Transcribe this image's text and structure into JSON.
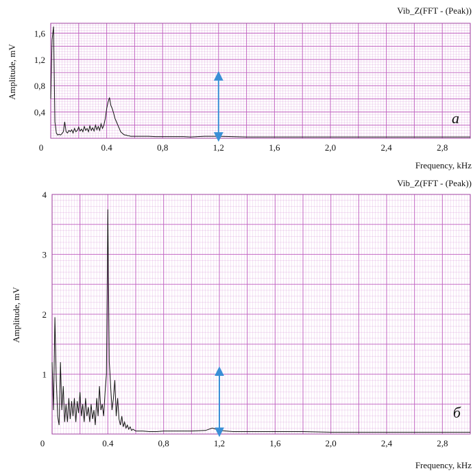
{
  "chart_data": [
    {
      "type": "line",
      "panel_label": "a",
      "title": "Vib_Z(FFT - (Peak))",
      "xlabel": "Frequency, kHz",
      "ylabel": "Amplitude, mV",
      "xlim": [
        0,
        3.0
      ],
      "ylim": [
        0,
        1.75
      ],
      "x_ticks": [
        "0",
        "0.4",
        "0,8",
        "1,2",
        "1,6",
        "2,0",
        "2,4",
        "2,8"
      ],
      "x_tick_values": [
        0,
        0.4,
        0.8,
        1.2,
        1.6,
        2.0,
        2.4,
        2.8
      ],
      "y_ticks": [
        "0,4",
        "0,8",
        "1,2",
        "1,6"
      ],
      "y_tick_values": [
        0.4,
        0.8,
        1.2,
        1.6
      ],
      "grid": true,
      "grid_color": "#c060c0",
      "line_color": "#111111",
      "arrow": {
        "x": 1.2,
        "y_from": 0.02,
        "y_to": 0.95,
        "color": "#3a8fd6"
      },
      "series": [
        {
          "x": [
            0.0,
            0.01,
            0.02,
            0.03,
            0.04,
            0.05,
            0.06,
            0.07,
            0.08,
            0.09,
            0.1,
            0.11,
            0.12,
            0.13,
            0.14,
            0.15,
            0.16,
            0.17,
            0.18,
            0.19,
            0.2,
            0.21,
            0.22,
            0.23,
            0.24,
            0.25,
            0.26,
            0.27,
            0.28,
            0.29,
            0.3,
            0.31,
            0.32,
            0.33,
            0.34,
            0.35,
            0.36,
            0.37,
            0.38,
            0.39,
            0.4,
            0.41,
            0.42,
            0.43,
            0.44,
            0.45,
            0.46,
            0.47,
            0.48,
            0.49,
            0.5,
            0.51,
            0.52,
            0.53,
            0.54,
            0.55,
            0.56,
            0.57,
            0.58,
            0.6,
            0.65,
            0.7,
            0.75,
            0.8,
            0.85,
            0.9,
            0.95,
            1.0,
            1.1,
            1.2,
            1.3,
            1.4,
            1.6,
            1.8,
            2.0,
            2.2,
            2.4,
            2.6,
            2.8,
            3.0
          ],
          "y": [
            0.6,
            1.5,
            1.7,
            0.25,
            0.08,
            0.05,
            0.06,
            0.05,
            0.07,
            0.1,
            0.25,
            0.1,
            0.08,
            0.12,
            0.1,
            0.13,
            0.08,
            0.15,
            0.1,
            0.12,
            0.17,
            0.11,
            0.14,
            0.1,
            0.18,
            0.12,
            0.15,
            0.1,
            0.19,
            0.12,
            0.16,
            0.11,
            0.2,
            0.13,
            0.18,
            0.12,
            0.22,
            0.15,
            0.2,
            0.3,
            0.45,
            0.55,
            0.62,
            0.5,
            0.45,
            0.38,
            0.3,
            0.25,
            0.2,
            0.15,
            0.1,
            0.08,
            0.06,
            0.05,
            0.05,
            0.04,
            0.04,
            0.03,
            0.03,
            0.03,
            0.03,
            0.03,
            0.025,
            0.025,
            0.025,
            0.025,
            0.025,
            0.02,
            0.03,
            0.03,
            0.025,
            0.02,
            0.02,
            0.02,
            0.02,
            0.02,
            0.02,
            0.02,
            0.02,
            0.02
          ]
        }
      ]
    },
    {
      "type": "line",
      "panel_label": "б",
      "title": "Vib_Z(FFT - (Peak))",
      "xlabel": "Frequency, kHz",
      "ylabel": "Amplitude, mV",
      "xlim": [
        0,
        3.0
      ],
      "ylim": [
        0,
        4.0
      ],
      "x_ticks": [
        "0",
        "0.4",
        "0,8",
        "1,2",
        "1,6",
        "2,0",
        "2,4",
        "2,8"
      ],
      "x_tick_values": [
        0,
        0.4,
        0.8,
        1.2,
        1.6,
        2.0,
        2.4,
        2.8
      ],
      "y_ticks": [
        "1",
        "2",
        "3",
        "4"
      ],
      "y_tick_values": [
        1,
        2,
        3,
        4
      ],
      "grid": true,
      "grid_color": "#c060c0",
      "line_color": "#111111",
      "arrow": {
        "x": 1.2,
        "y_from": 0.03,
        "y_to": 1.05,
        "color": "#3a8fd6"
      },
      "series": [
        {
          "x": [
            0.0,
            0.01,
            0.02,
            0.03,
            0.04,
            0.05,
            0.06,
            0.07,
            0.08,
            0.09,
            0.1,
            0.11,
            0.12,
            0.13,
            0.14,
            0.15,
            0.16,
            0.17,
            0.18,
            0.19,
            0.2,
            0.21,
            0.22,
            0.23,
            0.24,
            0.25,
            0.26,
            0.27,
            0.28,
            0.29,
            0.3,
            0.31,
            0.32,
            0.33,
            0.34,
            0.35,
            0.36,
            0.37,
            0.38,
            0.39,
            0.4,
            0.41,
            0.42,
            0.43,
            0.44,
            0.45,
            0.46,
            0.47,
            0.48,
            0.49,
            0.5,
            0.51,
            0.52,
            0.53,
            0.54,
            0.55,
            0.56,
            0.57,
            0.58,
            0.6,
            0.65,
            0.7,
            0.75,
            0.8,
            0.9,
            1.0,
            1.1,
            1.15,
            1.2,
            1.3,
            1.4,
            1.6,
            1.8,
            2.0,
            2.2,
            2.4,
            2.6,
            2.8,
            3.0
          ],
          "y": [
            1.2,
            0.4,
            1.95,
            0.9,
            0.3,
            0.15,
            1.2,
            0.4,
            0.8,
            0.2,
            0.5,
            0.2,
            0.6,
            0.25,
            0.55,
            0.3,
            0.6,
            0.2,
            0.55,
            0.35,
            0.7,
            0.3,
            0.5,
            0.2,
            0.6,
            0.3,
            0.45,
            0.2,
            0.5,
            0.25,
            0.4,
            0.15,
            0.6,
            0.3,
            0.8,
            0.4,
            0.5,
            0.3,
            0.7,
            1.0,
            3.75,
            1.2,
            0.8,
            0.4,
            0.6,
            0.9,
            0.3,
            0.6,
            0.25,
            0.15,
            0.3,
            0.12,
            0.2,
            0.1,
            0.15,
            0.08,
            0.12,
            0.06,
            0.08,
            0.05,
            0.05,
            0.04,
            0.04,
            0.05,
            0.05,
            0.05,
            0.06,
            0.1,
            0.06,
            0.04,
            0.04,
            0.04,
            0.04,
            0.03,
            0.03,
            0.03,
            0.03,
            0.03,
            0.03
          ]
        }
      ]
    }
  ]
}
